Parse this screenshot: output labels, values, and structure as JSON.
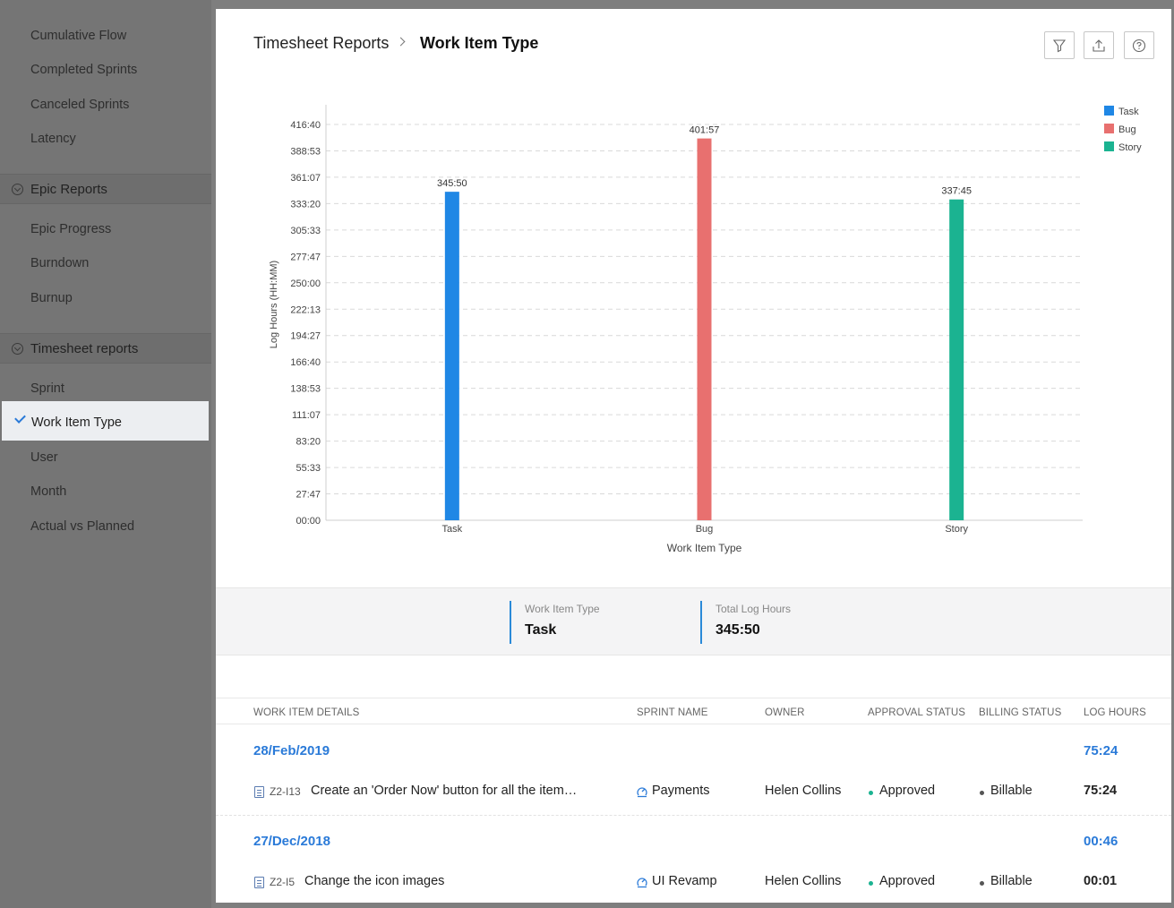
{
  "sidebar": {
    "items_top": [
      "Cumulative Flow",
      "Completed Sprints",
      "Canceled Sprints",
      "Latency"
    ],
    "epic_section": "Epic Reports",
    "epic_items": [
      "Epic Progress",
      "Burndown",
      "Burnup"
    ],
    "timesheet_section": "Timesheet reports",
    "timesheet_items": [
      "Sprint",
      "Work Item Type",
      "User",
      "Month",
      "Actual vs Planned"
    ],
    "active_item": "Work Item Type"
  },
  "header": {
    "breadcrumb_root": "Timesheet Reports",
    "breadcrumb_current": "Work Item Type",
    "icons": [
      "filter-icon",
      "export-icon",
      "help-icon"
    ]
  },
  "chart_data": {
    "type": "bar",
    "categories": [
      "Task",
      "Bug",
      "Story"
    ],
    "values": [
      345.83,
      401.95,
      337.75
    ],
    "value_labels": [
      "345:50",
      "401:57",
      "337:45"
    ],
    "colors": [
      "#1f87e5",
      "#e8706f",
      "#1bb391"
    ],
    "xlabel": "Work Item Type",
    "ylabel": "Log Hours (HH:MM)",
    "ylim": [
      0,
      416.67
    ],
    "yticks": [
      "00:00",
      "27:47",
      "55:33",
      "83:20",
      "111:07",
      "138:53",
      "166:40",
      "194:27",
      "222:13",
      "250:00",
      "277:47",
      "305:33",
      "333:20",
      "361:07",
      "388:53",
      "416:40"
    ],
    "legend": [
      "Task",
      "Bug",
      "Story"
    ],
    "legend_position": "top-right",
    "grid": true
  },
  "summary": {
    "type_label": "Work Item Type",
    "type_value": "Task",
    "hours_label": "Total Log Hours",
    "hours_value": "345:50"
  },
  "table": {
    "headers": [
      "WORK ITEM DETAILS",
      "SPRINT NAME",
      "OWNER",
      "APPROVAL STATUS",
      "BILLING STATUS",
      "LOG HOURS"
    ],
    "groups": [
      {
        "date": "28/Feb/2019",
        "total": "75:24",
        "row": {
          "id": "Z2-I13",
          "title": "Create an 'Order Now' button for all the item…",
          "sprint": "Payments",
          "owner": "Helen Collins",
          "approval": "Approved",
          "billing": "Billable",
          "hours": "75:24"
        }
      },
      {
        "date": "27/Dec/2018",
        "total": "00:46",
        "row": {
          "id": "Z2-I5",
          "title": "Change the icon images",
          "sprint": "UI Revamp",
          "owner": "Helen Collins",
          "approval": "Approved",
          "billing": "Billable",
          "hours": "00:01"
        }
      }
    ]
  },
  "colors": {
    "accent": "#2a7ad8",
    "approved_dot": "#1bb391",
    "billable_dot": "#555555"
  }
}
